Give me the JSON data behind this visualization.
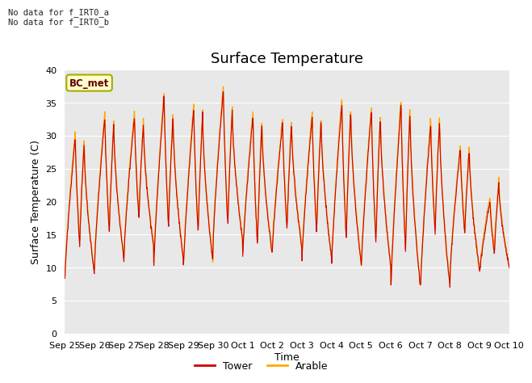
{
  "title": "Surface Temperature",
  "ylabel": "Surface Temperature (C)",
  "xlabel": "Time",
  "annotation_text": "No data for f_IRT0_a\nNo data for f_IRT0_b",
  "bc_met_label": "BC_met",
  "legend_entries": [
    "Tower",
    "Arable"
  ],
  "tower_color": "#cc0000",
  "arable_color": "#ffaa00",
  "background_color": "#e8e8e8",
  "ylim": [
    0,
    40
  ],
  "yticks": [
    0,
    5,
    10,
    15,
    20,
    25,
    30,
    35,
    40
  ],
  "x_tick_labels": [
    "Sep 25",
    "Sep 26",
    "Sep 27",
    "Sep 28",
    "Sep 29",
    "Sep 30",
    "Oct 1",
    "Oct 2",
    "Oct 3",
    "Oct 4",
    "Oct 5",
    "Oct 6",
    "Oct 7",
    "Oct 8",
    "Oct 9",
    "Oct 10"
  ],
  "num_days": 15,
  "title_fontsize": 13,
  "axis_label_fontsize": 9,
  "tick_fontsize": 8,
  "day_mins": [
    8.0,
    10.0,
    12.0,
    10.0,
    9.5,
    13.0,
    11.0,
    12.0,
    10.5,
    9.5,
    9.0,
    6.0,
    6.0,
    8.5,
    9.0
  ],
  "day_maxs": [
    30.0,
    33.0,
    33.0,
    36.0,
    34.0,
    37.0,
    33.0,
    32.0,
    33.0,
    35.0,
    34.0,
    35.0,
    32.0,
    28.0,
    20.0
  ],
  "mid_mins": [
    13.0,
    15.0,
    17.0,
    16.0,
    15.0,
    16.0,
    13.0,
    15.5,
    15.0,
    14.0,
    13.5,
    12.0,
    15.0,
    15.0,
    12.0
  ],
  "mid_maxs": [
    29.0,
    32.0,
    32.0,
    33.0,
    33.5,
    34.0,
    32.0,
    32.0,
    32.5,
    34.0,
    33.0,
    34.0,
    32.5,
    28.0,
    23.0
  ]
}
